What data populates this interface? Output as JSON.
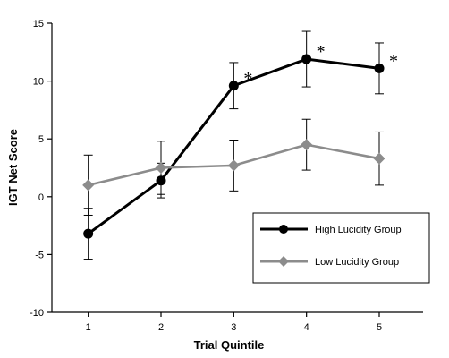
{
  "chart_data": {
    "type": "line",
    "title": "",
    "xlabel": "Trial Quintile",
    "ylabel": "IGT Net Score",
    "categories": [
      "1",
      "2",
      "3",
      "4",
      "5"
    ],
    "x": [
      1,
      2,
      3,
      4,
      5
    ],
    "xlim": [
      0.5,
      5.75
    ],
    "ylim": [
      -10,
      15
    ],
    "yticks": [
      15,
      10,
      5,
      0,
      -5,
      -10
    ],
    "yticks_labels": [
      "15",
      "10",
      "5",
      "0",
      "-5",
      "-10"
    ],
    "grid": false,
    "legend_placement": "lower-right",
    "series": [
      {
        "name": "High Lucidity Group",
        "color": "#000000",
        "marker": "circle",
        "values": [
          -3.2,
          1.4,
          9.6,
          11.9,
          11.1
        ],
        "error": [
          2.2,
          1.5,
          2.0,
          2.4,
          2.2
        ]
      },
      {
        "name": "Low Lucidity Group",
        "color": "#8c8c8c",
        "marker": "diamond",
        "values": [
          1.0,
          2.5,
          2.7,
          4.5,
          3.3
        ],
        "error": [
          2.6,
          2.3,
          2.2,
          2.2,
          2.3
        ]
      }
    ],
    "annotations": [
      {
        "text": "*",
        "x": 3,
        "series": 0
      },
      {
        "text": "*",
        "x": 4,
        "series": 0
      },
      {
        "text": "*",
        "x": 5,
        "series": 0
      }
    ]
  }
}
